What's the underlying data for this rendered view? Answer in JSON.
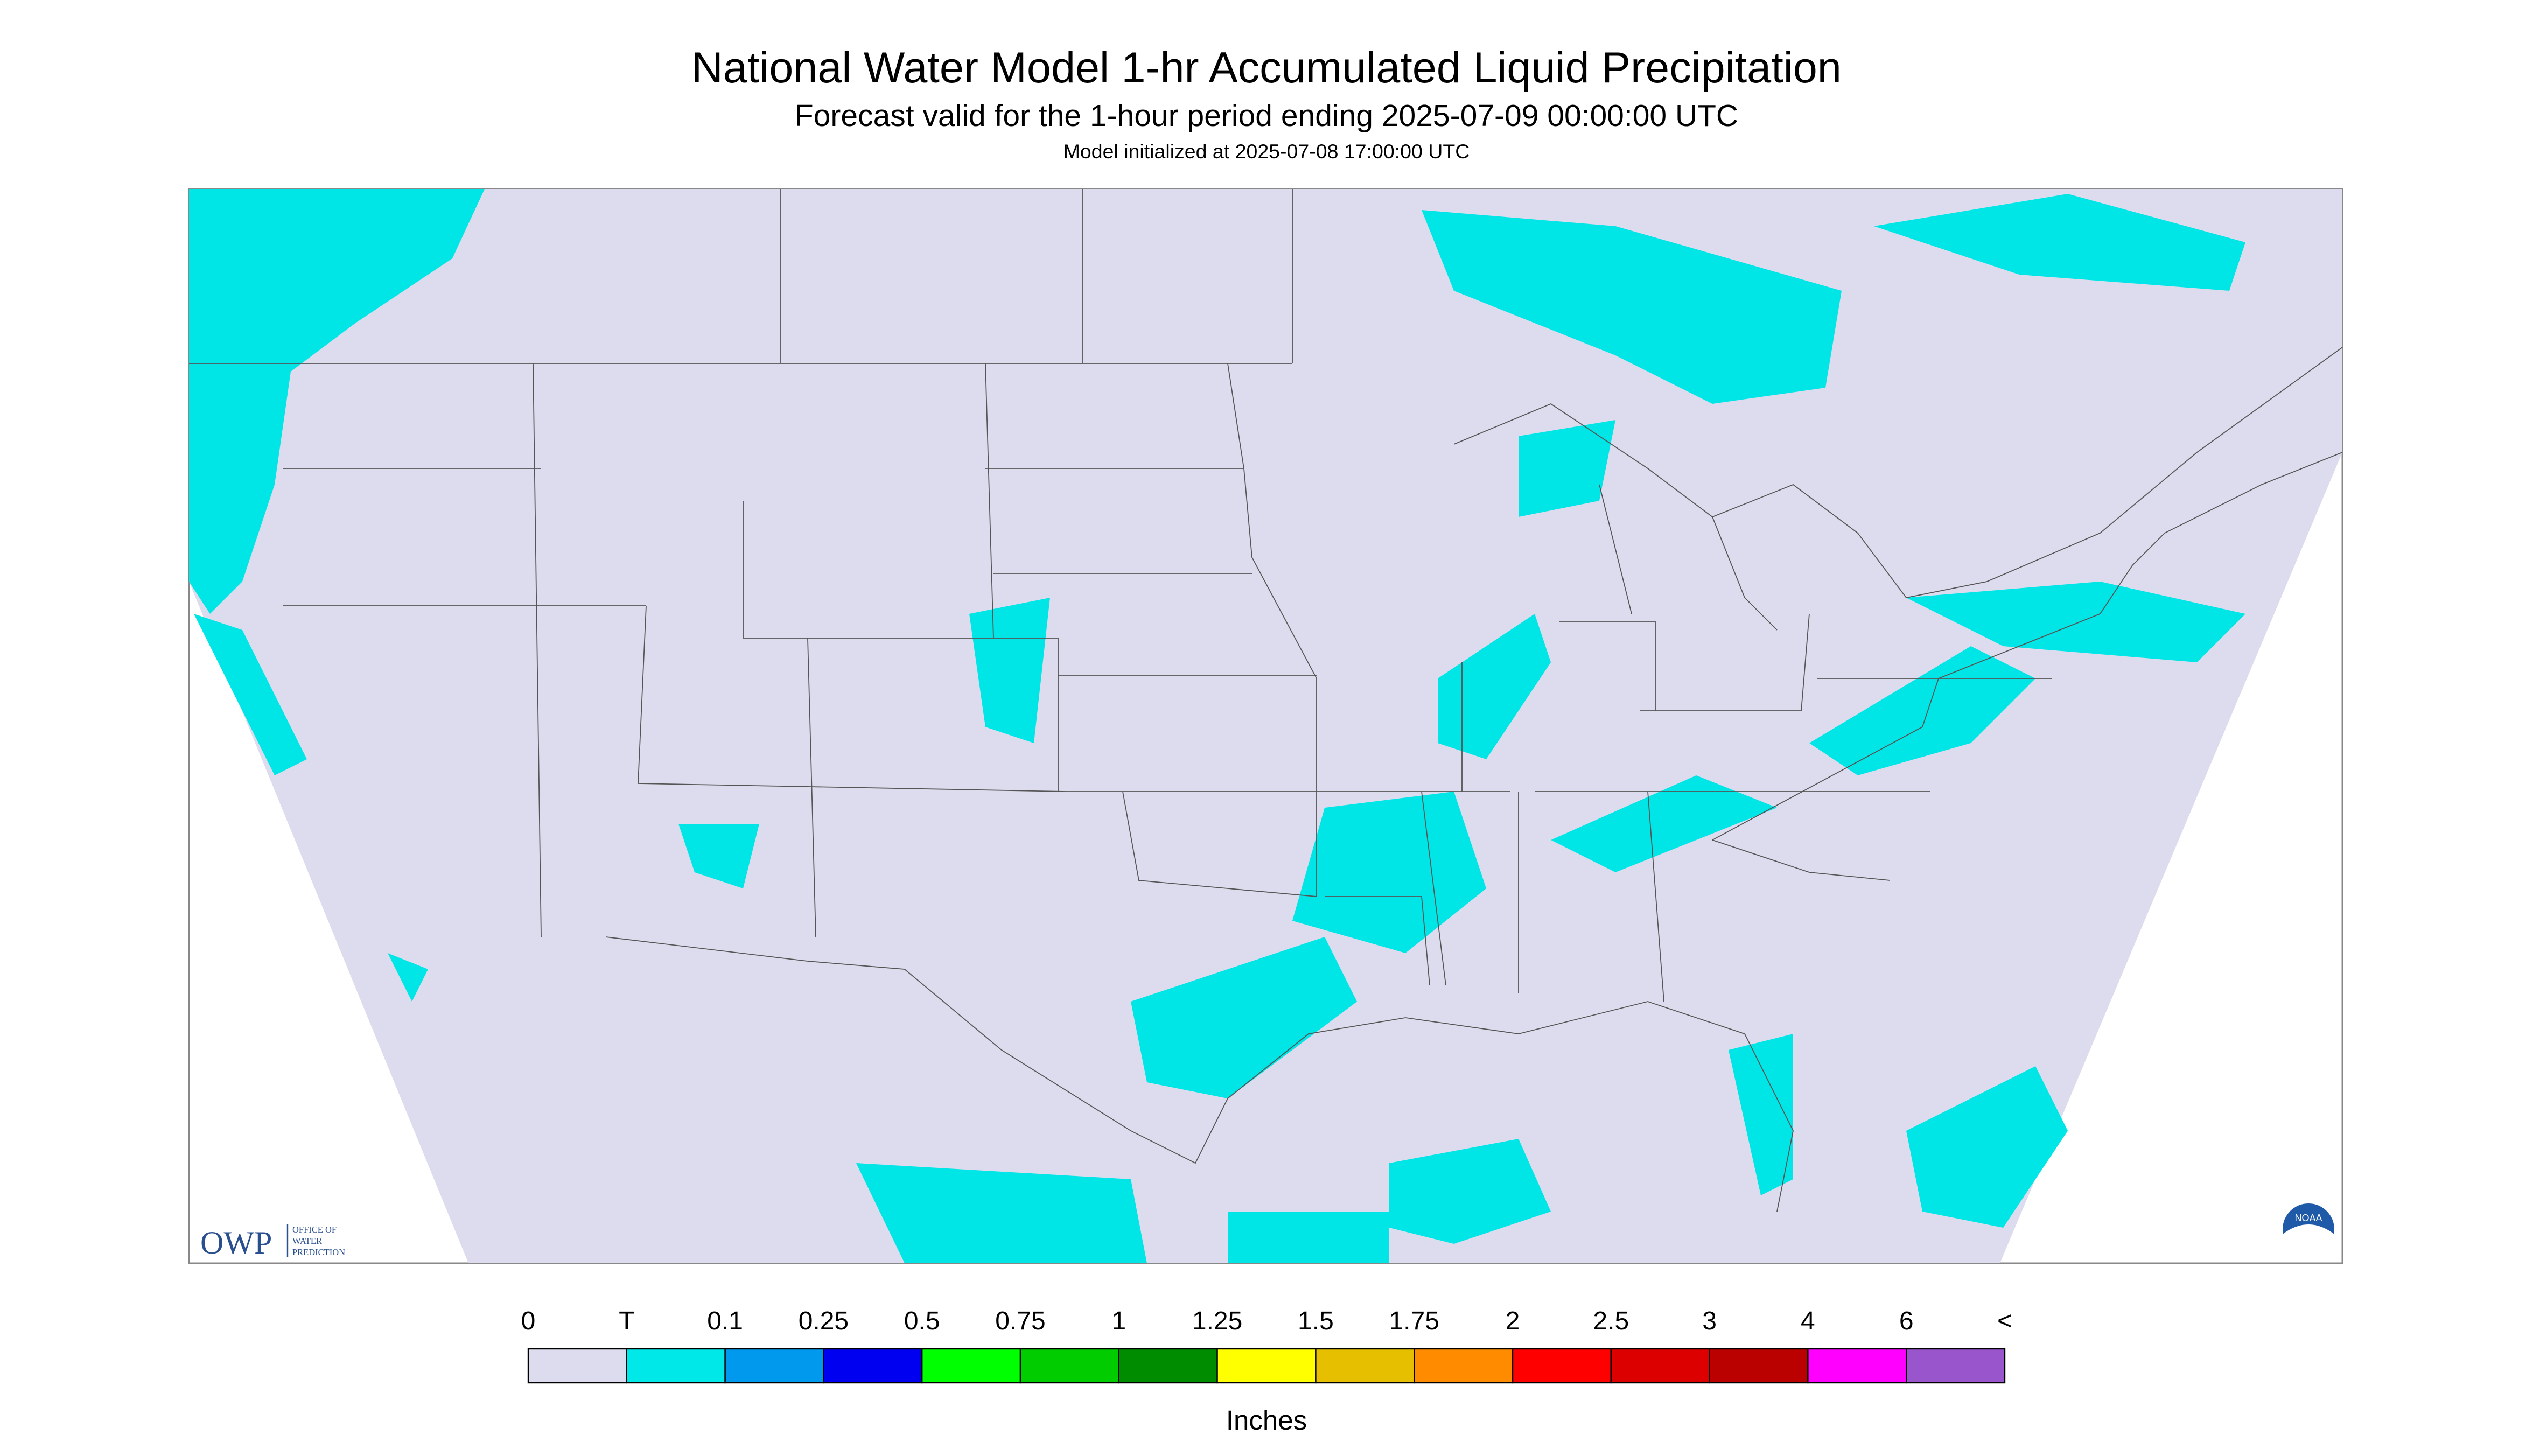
{
  "header": {
    "title": "National Water Model 1-hr Accumulated Liquid Precipitation",
    "subtitle": "Forecast valid for the 1-hour period ending 2025-07-09 00:00:00 UTC",
    "init": "Model initialized at 2025-07-08 17:00:00 UTC"
  },
  "logo": {
    "owp": "OWP",
    "office": [
      "OFFICE OF",
      "WATER",
      "PREDICTION"
    ],
    "noaa": "NOAA"
  },
  "legend": {
    "labels": [
      "0",
      "T",
      "0.1",
      "0.25",
      "0.5",
      "0.75",
      "1",
      "1.25",
      "1.5",
      "1.75",
      "2",
      "2.5",
      "3",
      "4",
      "6",
      "<"
    ],
    "colors": [
      "#dcdcee",
      "#00e8e8",
      "#0099ee",
      "#0000f0",
      "#00ff00",
      "#00cc00",
      "#008c00",
      "#ffff00",
      "#e6c000",
      "#ff8c00",
      "#ff0000",
      "#dd0000",
      "#bb0000",
      "#ff00ff",
      "#9955cc"
    ],
    "unit": "Inches"
  }
}
